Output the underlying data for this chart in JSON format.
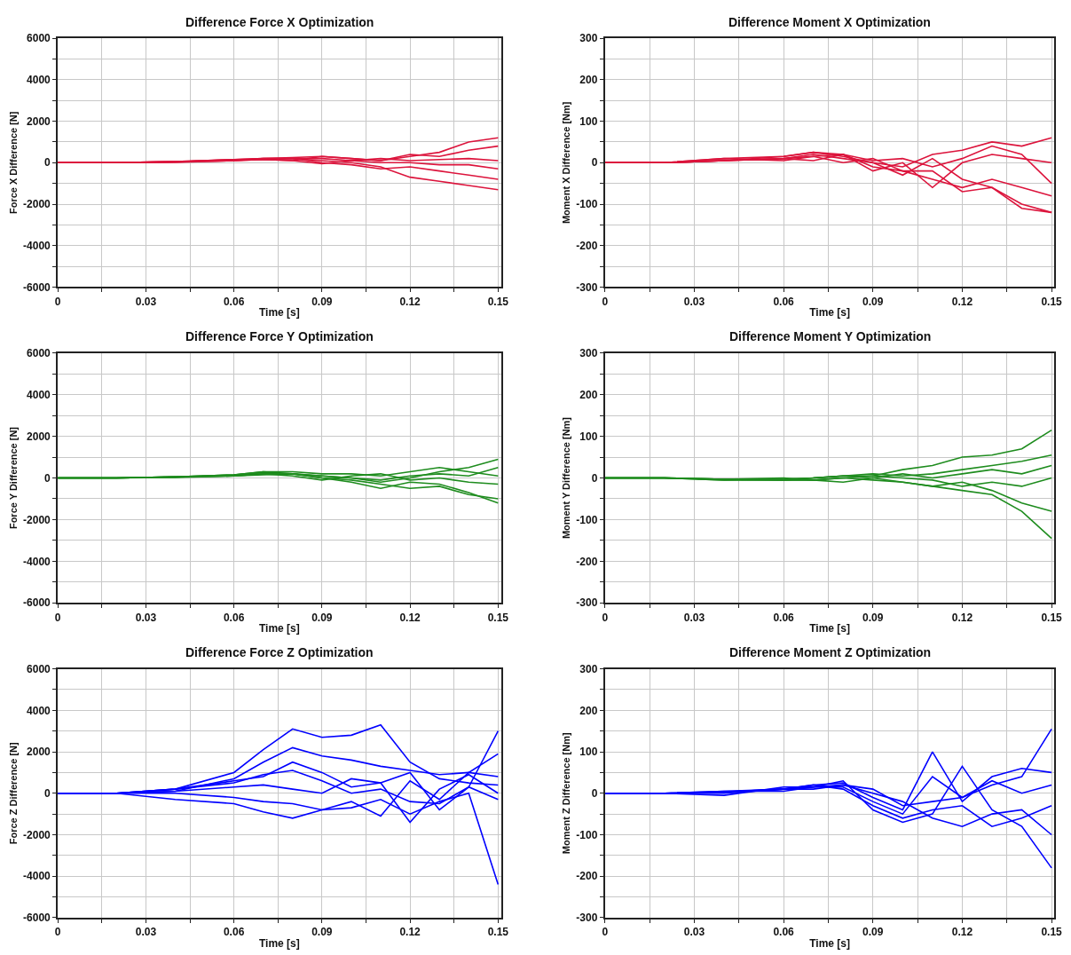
{
  "chart_data": [
    {
      "type": "line",
      "title": "Difference Force X Optimization",
      "xlabel": "Time [s]",
      "ylabel": "Force X Difference [N]",
      "x": [
        0,
        0.02,
        0.04,
        0.06,
        0.07,
        0.08,
        0.09,
        0.1,
        0.11,
        0.12,
        0.13,
        0.14,
        0.15
      ],
      "xlim": [
        0,
        0.151
      ],
      "xticks": [
        0,
        {
          "value": 0.015,
          "label": null
        },
        0.03,
        {
          "value": 0.045,
          "label": null
        },
        0.06,
        {
          "value": 0.075,
          "label": null
        },
        0.09,
        {
          "value": 0.105,
          "label": null
        },
        0.12,
        {
          "value": 0.135,
          "label": null
        },
        0.15
      ],
      "ylim": [
        -6000,
        6000
      ],
      "yticks": [
        -6000,
        {
          "value": -5000,
          "label": null
        },
        -4000,
        {
          "value": -3000,
          "label": null
        },
        -2000,
        {
          "value": -1000,
          "label": null
        },
        0,
        {
          "value": 1000,
          "label": null
        },
        2000,
        {
          "value": 3000,
          "label": null
        },
        4000,
        {
          "value": 5000,
          "label": null
        },
        6000
      ],
      "grid": true,
      "marker": "none",
      "line_style": "solid",
      "series": [
        {
          "color": "#dc143c",
          "values": [
            0,
            0,
            50,
            150,
            200,
            250,
            300,
            200,
            100,
            300,
            500,
            1000,
            1200
          ]
        },
        {
          "color": "#dc143c",
          "values": [
            0,
            0,
            50,
            150,
            200,
            200,
            100,
            0,
            -200,
            -700,
            -900,
            -1100,
            -1300
          ]
        },
        {
          "color": "#dc143c",
          "values": [
            0,
            0,
            50,
            100,
            200,
            200,
            0,
            -100,
            -300,
            -200,
            -400,
            -600,
            -800
          ]
        },
        {
          "color": "#dc143c",
          "values": [
            0,
            0,
            20,
            100,
            150,
            100,
            300,
            200,
            100,
            400,
            300,
            600,
            800
          ]
        },
        {
          "color": "#dc143c",
          "values": [
            0,
            0,
            30,
            150,
            150,
            100,
            -50,
            100,
            0,
            0,
            -100,
            -100,
            -300
          ]
        },
        {
          "color": "#dc143c",
          "values": [
            0,
            0,
            50,
            100,
            150,
            200,
            200,
            100,
            200,
            100,
            150,
            200,
            100
          ]
        }
      ]
    },
    {
      "type": "line",
      "title": "Difference Moment X Optimization",
      "xlabel": "Time [s]",
      "ylabel": "Moment X Difference [Nm]",
      "x": [
        0,
        0.02,
        0.04,
        0.06,
        0.07,
        0.08,
        0.09,
        0.1,
        0.11,
        0.12,
        0.13,
        0.14,
        0.15
      ],
      "xlim": [
        0,
        0.151
      ],
      "xticks": [
        0,
        {
          "value": 0.015,
          "label": null
        },
        0.03,
        {
          "value": 0.045,
          "label": null
        },
        0.06,
        {
          "value": 0.075,
          "label": null
        },
        0.09,
        {
          "value": 0.105,
          "label": null
        },
        0.12,
        {
          "value": 0.135,
          "label": null
        },
        0.15
      ],
      "ylim": [
        -300,
        300
      ],
      "yticks": [
        -300,
        {
          "value": -250,
          "label": null
        },
        -200,
        {
          "value": -150,
          "label": null
        },
        -100,
        {
          "value": -50,
          "label": null
        },
        0,
        {
          "value": 50,
          "label": null
        },
        100,
        {
          "value": 150,
          "label": null
        },
        200,
        {
          "value": 250,
          "label": null
        },
        300
      ],
      "grid": true,
      "marker": "none",
      "line_style": "solid",
      "series": [
        {
          "color": "#dc143c",
          "values": [
            0,
            0,
            5,
            10,
            20,
            10,
            0,
            -30,
            10,
            -40,
            -60,
            -100,
            -120
          ]
        },
        {
          "color": "#dc143c",
          "values": [
            0,
            0,
            10,
            15,
            25,
            15,
            0,
            -10,
            20,
            30,
            50,
            40,
            60
          ]
        },
        {
          "color": "#dc143c",
          "values": [
            0,
            0,
            5,
            10,
            5,
            20,
            -10,
            -20,
            -40,
            -60,
            -40,
            -60,
            -80
          ]
        },
        {
          "color": "#dc143c",
          "values": [
            0,
            0,
            10,
            5,
            15,
            20,
            -20,
            0,
            -60,
            0,
            20,
            10,
            0
          ]
        },
        {
          "color": "#dc143c",
          "values": [
            0,
            0,
            5,
            10,
            15,
            0,
            10,
            -20,
            -20,
            -70,
            -60,
            -110,
            -120
          ]
        },
        {
          "color": "#dc143c",
          "values": [
            0,
            0,
            5,
            15,
            25,
            20,
            5,
            10,
            -10,
            10,
            40,
            20,
            -50
          ]
        }
      ]
    },
    {
      "type": "line",
      "title": "Difference Force Y Optimization",
      "xlabel": "Time [s]",
      "ylabel": "Force Y Difference [N]",
      "x": [
        0,
        0.02,
        0.04,
        0.06,
        0.07,
        0.08,
        0.09,
        0.1,
        0.11,
        0.12,
        0.13,
        0.14,
        0.15
      ],
      "xlim": [
        0,
        0.151
      ],
      "xticks": [
        0,
        {
          "value": 0.015,
          "label": null
        },
        0.03,
        {
          "value": 0.045,
          "label": null
        },
        0.06,
        {
          "value": 0.075,
          "label": null
        },
        0.09,
        {
          "value": 0.105,
          "label": null
        },
        0.12,
        {
          "value": 0.135,
          "label": null
        },
        0.15
      ],
      "ylim": [
        -6000,
        6000
      ],
      "yticks": [
        -6000,
        {
          "value": -5000,
          "label": null
        },
        -4000,
        {
          "value": -3000,
          "label": null
        },
        -2000,
        {
          "value": -1000,
          "label": null
        },
        0,
        {
          "value": 1000,
          "label": null
        },
        2000,
        {
          "value": 3000,
          "label": null
        },
        4000,
        {
          "value": 5000,
          "label": null
        },
        6000
      ],
      "grid": true,
      "marker": "none",
      "line_style": "solid",
      "series": [
        {
          "color": "#1e8c1e",
          "values": [
            0,
            0,
            50,
            150,
            300,
            200,
            100,
            0,
            -200,
            0,
            300,
            500,
            900
          ]
        },
        {
          "color": "#1e8c1e",
          "values": [
            0,
            0,
            50,
            100,
            200,
            200,
            0,
            -200,
            -500,
            -200,
            -300,
            -700,
            -1200
          ]
        },
        {
          "color": "#1e8c1e",
          "values": [
            0,
            0,
            50,
            150,
            300,
            300,
            200,
            200,
            100,
            300,
            500,
            300,
            100
          ]
        },
        {
          "color": "#1e8c1e",
          "values": [
            0,
            0,
            50,
            100,
            150,
            200,
            0,
            -100,
            -300,
            -500,
            -400,
            -800,
            -1000
          ]
        },
        {
          "color": "#1e8c1e",
          "values": [
            0,
            0,
            30,
            100,
            200,
            100,
            -100,
            100,
            200,
            -100,
            0,
            -200,
            -300
          ]
        },
        {
          "color": "#1e8c1e",
          "values": [
            0,
            0,
            50,
            150,
            250,
            200,
            100,
            0,
            -100,
            100,
            200,
            100,
            500
          ]
        }
      ]
    },
    {
      "type": "line",
      "title": "Difference Moment Y Optimization",
      "xlabel": "Time [s]",
      "ylabel": "Moment Y Difference [Nm]",
      "x": [
        0,
        0.02,
        0.04,
        0.06,
        0.07,
        0.08,
        0.09,
        0.1,
        0.11,
        0.12,
        0.13,
        0.14,
        0.15
      ],
      "xlim": [
        0,
        0.151
      ],
      "xticks": [
        0,
        {
          "value": 0.015,
          "label": null
        },
        0.03,
        {
          "value": 0.045,
          "label": null
        },
        0.06,
        {
          "value": 0.075,
          "label": null
        },
        0.09,
        {
          "value": 0.105,
          "label": null
        },
        0.12,
        {
          "value": 0.135,
          "label": null
        },
        0.15
      ],
      "ylim": [
        -300,
        300
      ],
      "yticks": [
        -300,
        {
          "value": -250,
          "label": null
        },
        -200,
        {
          "value": -150,
          "label": null
        },
        -100,
        {
          "value": -50,
          "label": null
        },
        0,
        {
          "value": 50,
          "label": null
        },
        100,
        {
          "value": 150,
          "label": null
        },
        200,
        {
          "value": 250,
          "label": null
        },
        300
      ],
      "grid": true,
      "marker": "none",
      "line_style": "solid",
      "series": [
        {
          "color": "#1e8c1e",
          "values": [
            0,
            0,
            -3,
            -3,
            0,
            5,
            5,
            20,
            30,
            50,
            55,
            70,
            115
          ]
        },
        {
          "color": "#1e8c1e",
          "values": [
            0,
            0,
            -5,
            -5,
            -5,
            0,
            -5,
            -10,
            -20,
            -30,
            -40,
            -80,
            -145
          ]
        },
        {
          "color": "#1e8c1e",
          "values": [
            0,
            0,
            -3,
            -5,
            0,
            5,
            10,
            5,
            10,
            20,
            30,
            40,
            55
          ]
        },
        {
          "color": "#1e8c1e",
          "values": [
            0,
            0,
            -3,
            0,
            -5,
            -10,
            0,
            -10,
            -20,
            -10,
            -30,
            -60,
            -80
          ]
        },
        {
          "color": "#1e8c1e",
          "values": [
            0,
            0,
            -5,
            -3,
            0,
            5,
            0,
            10,
            0,
            10,
            20,
            10,
            30
          ]
        },
        {
          "color": "#1e8c1e",
          "values": [
            0,
            0,
            -3,
            -5,
            -5,
            0,
            5,
            0,
            -5,
            -20,
            -10,
            -20,
            0
          ]
        }
      ]
    },
    {
      "type": "line",
      "title": "Difference Force Z Optimization",
      "xlabel": "Time [s]",
      "ylabel": "Force Z Difference [N]",
      "x": [
        0,
        0.02,
        0.04,
        0.06,
        0.07,
        0.08,
        0.09,
        0.1,
        0.11,
        0.12,
        0.13,
        0.14,
        0.15
      ],
      "xlim": [
        0,
        0.151
      ],
      "xticks": [
        0,
        {
          "value": 0.015,
          "label": null
        },
        0.03,
        {
          "value": 0.045,
          "label": null
        },
        0.06,
        {
          "value": 0.075,
          "label": null
        },
        0.09,
        {
          "value": 0.105,
          "label": null
        },
        0.12,
        {
          "value": 0.135,
          "label": null
        },
        0.15
      ],
      "ylim": [
        -6000,
        6000
      ],
      "yticks": [
        -6000,
        {
          "value": -5000,
          "label": null
        },
        -4000,
        {
          "value": -3000,
          "label": null
        },
        -2000,
        {
          "value": -1000,
          "label": null
        },
        0,
        {
          "value": 1000,
          "label": null
        },
        2000,
        {
          "value": 3000,
          "label": null
        },
        4000,
        {
          "value": 5000,
          "label": null
        },
        6000
      ],
      "grid": true,
      "marker": "none",
      "line_style": "solid",
      "series": [
        {
          "color": "#0000ff",
          "values": [
            0,
            0,
            200,
            1000,
            2100,
            3100,
            2700,
            2800,
            3300,
            1500,
            700,
            500,
            400
          ]
        },
        {
          "color": "#0000ff",
          "values": [
            0,
            0,
            100,
            700,
            1500,
            2200,
            1800,
            1600,
            1300,
            1100,
            900,
            1000,
            1900
          ]
        },
        {
          "color": "#0000ff",
          "values": [
            0,
            0,
            200,
            500,
            900,
            1100,
            600,
            0,
            200,
            -400,
            -500,
            300,
            3000
          ]
        },
        {
          "color": "#0000ff",
          "values": [
            0,
            0,
            -300,
            -500,
            -900,
            -1200,
            -800,
            -700,
            -300,
            -1000,
            -400,
            0,
            -4400
          ]
        },
        {
          "color": "#0000ff",
          "values": [
            0,
            0,
            0,
            -200,
            -400,
            -500,
            -800,
            -400,
            -1100,
            600,
            -300,
            1000,
            800
          ]
        },
        {
          "color": "#0000ff",
          "values": [
            0,
            0,
            200,
            600,
            800,
            1500,
            1000,
            300,
            500,
            1000,
            -800,
            300,
            -300
          ]
        },
        {
          "color": "#0000ff",
          "values": [
            0,
            0,
            100,
            300,
            400,
            200,
            0,
            700,
            500,
            -1400,
            200,
            900,
            0
          ]
        }
      ]
    },
    {
      "type": "line",
      "title": "Difference Moment Z Optimization",
      "xlabel": "Time [s]",
      "ylabel": "Moment Z Difference [Nm]",
      "x": [
        0,
        0.02,
        0.04,
        0.06,
        0.07,
        0.08,
        0.09,
        0.1,
        0.11,
        0.12,
        0.13,
        0.14,
        0.15
      ],
      "xlim": [
        0,
        0.151
      ],
      "xticks": [
        0,
        {
          "value": 0.015,
          "label": null
        },
        0.03,
        {
          "value": 0.045,
          "label": null
        },
        0.06,
        {
          "value": 0.075,
          "label": null
        },
        0.09,
        {
          "value": 0.105,
          "label": null
        },
        0.12,
        {
          "value": 0.135,
          "label": null
        },
        0.15
      ],
      "ylim": [
        -300,
        300
      ],
      "yticks": [
        -300,
        {
          "value": -250,
          "label": null
        },
        -200,
        {
          "value": -150,
          "label": null
        },
        -100,
        {
          "value": -50,
          "label": null
        },
        0,
        {
          "value": 50,
          "label": null
        },
        100,
        {
          "value": 150,
          "label": null
        },
        200,
        {
          "value": 250,
          "label": null
        },
        300
      ],
      "grid": true,
      "marker": "none",
      "line_style": "solid",
      "series": [
        {
          "color": "#0000ff",
          "values": [
            0,
            0,
            3,
            10,
            15,
            20,
            10,
            -30,
            -20,
            -10,
            20,
            40,
            155
          ]
        },
        {
          "color": "#0000ff",
          "values": [
            0,
            0,
            5,
            10,
            20,
            25,
            -10,
            -40,
            100,
            -20,
            40,
            60,
            50
          ]
        },
        {
          "color": "#0000ff",
          "values": [
            0,
            0,
            -5,
            15,
            15,
            30,
            -40,
            -70,
            -50,
            65,
            -40,
            -80,
            -180
          ]
        },
        {
          "color": "#0000ff",
          "values": [
            0,
            0,
            0,
            10,
            10,
            20,
            0,
            -20,
            -60,
            -80,
            -50,
            -40,
            -100
          ]
        },
        {
          "color": "#0000ff",
          "values": [
            0,
            0,
            5,
            5,
            15,
            15,
            -20,
            -50,
            40,
            -10,
            30,
            0,
            20
          ]
        },
        {
          "color": "#0000ff",
          "values": [
            0,
            0,
            3,
            10,
            20,
            10,
            -30,
            -60,
            -40,
            -30,
            -80,
            -60,
            -30
          ]
        }
      ]
    }
  ]
}
